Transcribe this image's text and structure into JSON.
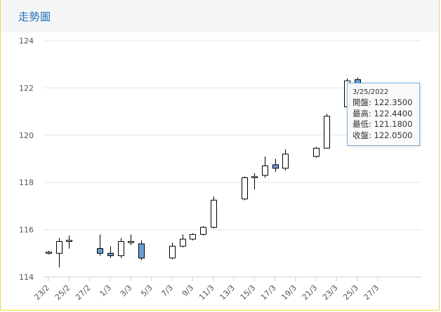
{
  "header": {
    "title": "走勢圖"
  },
  "tooltip": {
    "date": "3/25/2022",
    "open_label": "開盤: ",
    "open_value": "122.3500",
    "high_label": "最高: ",
    "high_value": "122.4400",
    "low_label": "最低: ",
    "low_value": "121.1800",
    "close_label": "收盤: ",
    "close_value": "122.0500"
  },
  "colors": {
    "up": "#ffffff",
    "down": "#6a9fd6",
    "stroke": "#000000",
    "grid": "#e6e6e6",
    "accent": "#1f6fb8"
  },
  "chart_data": {
    "type": "candlestick",
    "ylim": [
      114,
      124
    ],
    "yticks": [
      114,
      116,
      118,
      120,
      122,
      124
    ],
    "xticks": [
      "23/2",
      "25/2",
      "27/2",
      "1/3",
      "3/3",
      "5/3",
      "7/3",
      "9/3",
      "11/3",
      "13/3",
      "15/3",
      "17/3",
      "19/3",
      "21/3",
      "23/3",
      "25/3",
      "27/3"
    ],
    "grid": true,
    "candles": [
      {
        "date": "23/2",
        "open": 115.0,
        "high": 115.1,
        "low": 114.95,
        "close": 115.05
      },
      {
        "date": "24/2",
        "open": 115.0,
        "high": 115.65,
        "low": 114.4,
        "close": 115.5
      },
      {
        "date": "25/2",
        "open": 115.5,
        "high": 115.75,
        "low": 115.2,
        "close": 115.55
      },
      {
        "date": "28/2",
        "open": 115.2,
        "high": 115.8,
        "low": 114.9,
        "close": 115.0
      },
      {
        "date": "1/3",
        "open": 115.0,
        "high": 115.3,
        "low": 114.8,
        "close": 114.9
      },
      {
        "date": "2/3",
        "open": 114.9,
        "high": 115.65,
        "low": 114.8,
        "close": 115.5
      },
      {
        "date": "3/3",
        "open": 115.45,
        "high": 115.8,
        "low": 115.35,
        "close": 115.5
      },
      {
        "date": "4/3",
        "open": 115.4,
        "high": 115.55,
        "low": 114.7,
        "close": 114.8
      },
      {
        "date": "7/3",
        "open": 114.8,
        "high": 115.45,
        "low": 114.75,
        "close": 115.3
      },
      {
        "date": "8/3",
        "open": 115.3,
        "high": 115.8,
        "low": 115.25,
        "close": 115.6
      },
      {
        "date": "9/3",
        "open": 115.6,
        "high": 115.85,
        "low": 115.55,
        "close": 115.8
      },
      {
        "date": "10/3",
        "open": 115.8,
        "high": 116.15,
        "low": 115.75,
        "close": 116.1
      },
      {
        "date": "11/3",
        "open": 116.1,
        "high": 117.4,
        "low": 116.05,
        "close": 117.25
      },
      {
        "date": "14/3",
        "open": 117.3,
        "high": 118.25,
        "low": 117.25,
        "close": 118.2
      },
      {
        "date": "15/3",
        "open": 118.2,
        "high": 118.4,
        "low": 117.7,
        "close": 118.25
      },
      {
        "date": "16/3",
        "open": 118.3,
        "high": 119.1,
        "low": 118.2,
        "close": 118.7
      },
      {
        "date": "17/3",
        "open": 118.75,
        "high": 119.0,
        "low": 118.45,
        "close": 118.6
      },
      {
        "date": "18/3",
        "open": 118.6,
        "high": 119.4,
        "low": 118.5,
        "close": 119.2
      },
      {
        "date": "21/3",
        "open": 119.1,
        "high": 119.5,
        "low": 119.05,
        "close": 119.45
      },
      {
        "date": "22/3",
        "open": 119.45,
        "high": 120.9,
        "low": 119.45,
        "close": 120.8
      },
      {
        "date": "24/3",
        "open": 121.2,
        "high": 122.4,
        "low": 121.1,
        "close": 122.3
      },
      {
        "date": "25/3",
        "open": 122.35,
        "high": 122.44,
        "low": 121.18,
        "close": 122.05
      }
    ]
  }
}
